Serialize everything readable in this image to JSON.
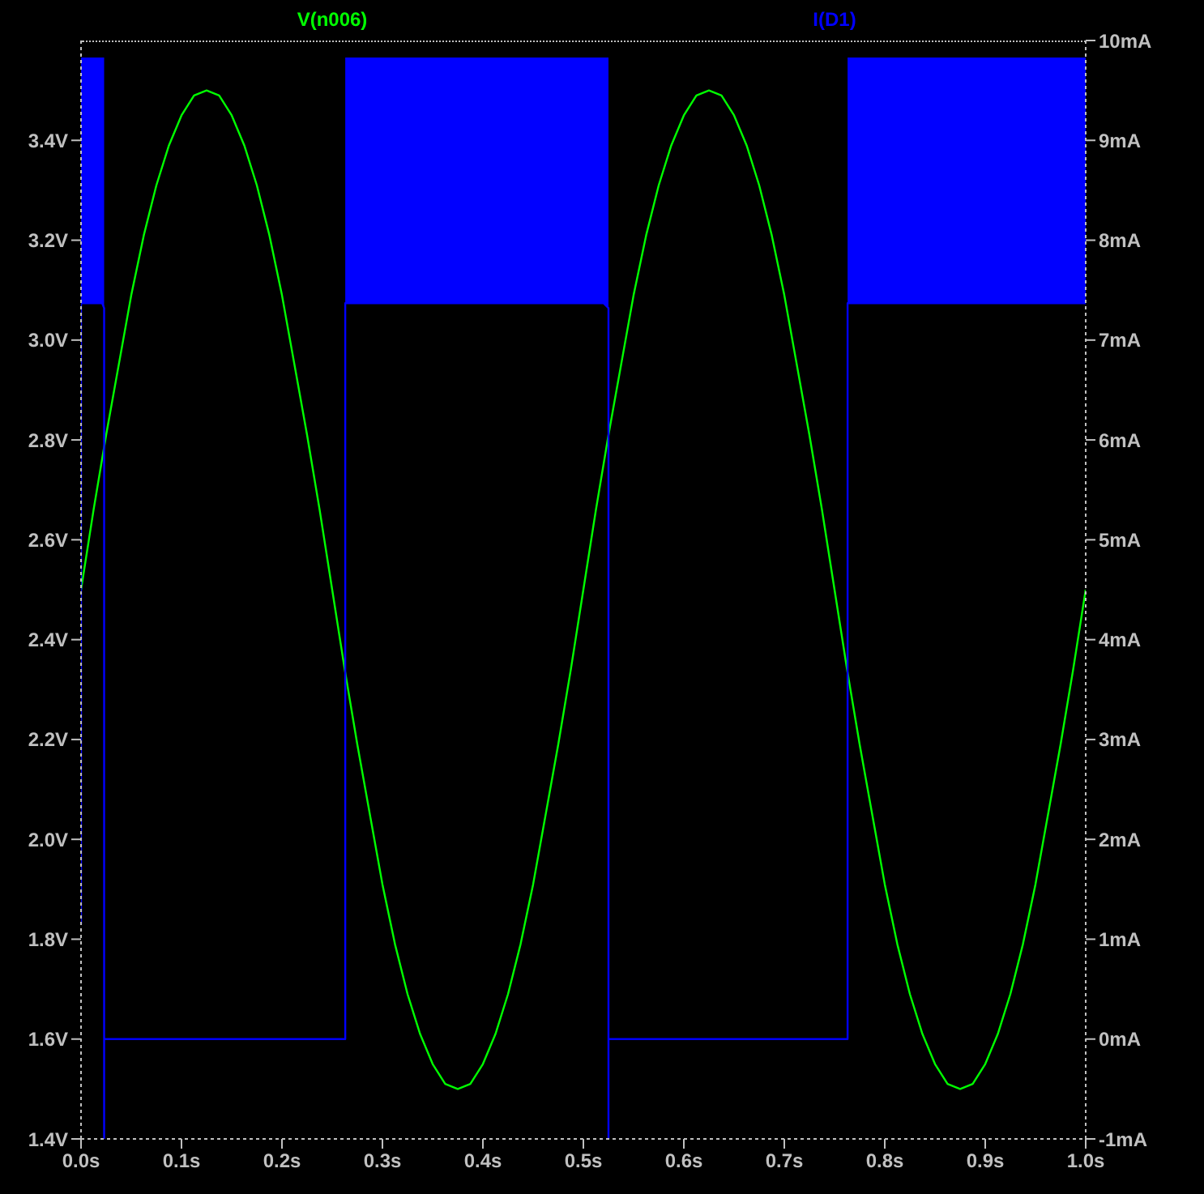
{
  "chart_data": {
    "type": "line",
    "legend": "top",
    "marker": "none",
    "xlim": [
      0,
      1
    ],
    "xticks": [
      {
        "value": 0,
        "label": "0.0s"
      },
      {
        "value": 0.1,
        "label": "0.1s"
      },
      {
        "value": 0.2,
        "label": "0.2s"
      },
      {
        "value": 0.3,
        "label": "0.3s"
      },
      {
        "value": 0.4,
        "label": "0.4s"
      },
      {
        "value": 0.5,
        "label": "0.5s"
      },
      {
        "value": 0.6,
        "label": "0.6s"
      },
      {
        "value": 0.7,
        "label": "0.7s"
      },
      {
        "value": 0.8,
        "label": "0.8s"
      },
      {
        "value": 0.9,
        "label": "0.9s"
      },
      {
        "value": 1,
        "label": "1.0s"
      }
    ],
    "ylim": [
      1.4,
      3.6
    ],
    "yticks": [
      {
        "value": 1.4,
        "label": "1.4V"
      },
      {
        "value": 1.6,
        "label": "1.6V"
      },
      {
        "value": 1.8,
        "label": "1.8V"
      },
      {
        "value": 2.0,
        "label": "2.0V"
      },
      {
        "value": 2.2,
        "label": "2.2V"
      },
      {
        "value": 2.4,
        "label": "2.4V"
      },
      {
        "value": 2.6,
        "label": "2.6V"
      },
      {
        "value": 2.8,
        "label": "2.8V"
      },
      {
        "value": 3.0,
        "label": "3.0V"
      },
      {
        "value": 3.2,
        "label": "3.2V"
      },
      {
        "value": 3.4,
        "label": "3.4V"
      }
    ],
    "y2lim": [
      -1,
      10
    ],
    "y2ticks": [
      {
        "value": -1,
        "label": "-1mA"
      },
      {
        "value": 0,
        "label": "0mA"
      },
      {
        "value": 1,
        "label": "1mA"
      },
      {
        "value": 2,
        "label": "2mA"
      },
      {
        "value": 3,
        "label": "3mA"
      },
      {
        "value": 4,
        "label": "4mA"
      },
      {
        "value": 5,
        "label": "5mA"
      },
      {
        "value": 6,
        "label": "6mA"
      },
      {
        "value": 7,
        "label": "7mA"
      },
      {
        "value": 8,
        "label": "8mA"
      },
      {
        "value": 9,
        "label": "9mA"
      },
      {
        "value": 10,
        "label": "10mA"
      }
    ],
    "series": [
      {
        "name": "V(n006)",
        "color": "#00ff00",
        "x": [
          0,
          0.0125,
          0.025,
          0.0375,
          0.05,
          0.0625,
          0.075,
          0.0875,
          0.1,
          0.1125,
          0.125,
          0.1375,
          0.15,
          0.1625,
          0.175,
          0.1875,
          0.2,
          0.2125,
          0.225,
          0.2375,
          0.25,
          0.2625,
          0.275,
          0.2875,
          0.3,
          0.3125,
          0.325,
          0.3375,
          0.35,
          0.3625,
          0.375,
          0.3875,
          0.4,
          0.4125,
          0.425,
          0.4375,
          0.45,
          0.4625,
          0.475,
          0.4875,
          0.5,
          0.5125,
          0.525,
          0.5375,
          0.55,
          0.5625,
          0.575,
          0.5875,
          0.6,
          0.6125,
          0.625,
          0.6375,
          0.65,
          0.6625,
          0.675,
          0.6875,
          0.7,
          0.7125,
          0.725,
          0.7375,
          0.75,
          0.7625,
          0.775,
          0.7875,
          0.8,
          0.8125,
          0.825,
          0.8375,
          0.85,
          0.8625,
          0.875,
          0.8875,
          0.9,
          0.9125,
          0.925,
          0.9375,
          0.95,
          0.9625,
          0.975,
          0.9875,
          1
        ],
        "values": [
          2.5,
          2.66,
          2.81,
          2.95,
          3.09,
          3.21,
          3.31,
          3.39,
          3.45,
          3.49,
          3.5,
          3.49,
          3.45,
          3.39,
          3.31,
          3.21,
          3.09,
          2.95,
          2.81,
          2.66,
          2.5,
          2.34,
          2.19,
          2.05,
          1.91,
          1.79,
          1.69,
          1.61,
          1.55,
          1.51,
          1.5,
          1.51,
          1.55,
          1.61,
          1.69,
          1.79,
          1.91,
          2.05,
          2.19,
          2.34,
          2.5,
          2.66,
          2.81,
          2.95,
          3.09,
          3.21,
          3.31,
          3.39,
          3.45,
          3.49,
          3.5,
          3.49,
          3.45,
          3.39,
          3.31,
          3.21,
          3.09,
          2.95,
          2.81,
          2.66,
          2.5,
          2.34,
          2.19,
          2.05,
          1.91,
          1.79,
          1.69,
          1.61,
          1.55,
          1.51,
          1.5,
          1.51,
          1.55,
          1.61,
          1.69,
          1.79,
          1.91,
          2.05,
          2.19,
          2.34,
          2.5
        ]
      },
      {
        "name": "I(D1)",
        "color": "#0000ff",
        "axis": "y2",
        "x": [
          0,
          0,
          0.021,
          0.023,
          0.023,
          0.023,
          0.263,
          0.263,
          0.52,
          0.525,
          0.525,
          0.525,
          0.763,
          0.763,
          1
        ],
        "values": [
          1.15,
          7.37,
          7.37,
          7.32,
          -1,
          0,
          0,
          7.37,
          7.37,
          7.32,
          -1,
          0,
          0,
          7.37,
          7.37
        ],
        "lower": [
          null,
          7.37,
          7.37,
          7.32,
          null,
          null,
          null,
          7.37,
          7.37,
          7.32,
          null,
          null,
          null,
          7.37,
          7.37
        ],
        "upper": [
          null,
          9.83,
          9.83,
          9.83,
          null,
          null,
          null,
          9.83,
          9.83,
          9.83,
          null,
          null,
          null,
          9.83,
          9.83
        ]
      }
    ]
  }
}
